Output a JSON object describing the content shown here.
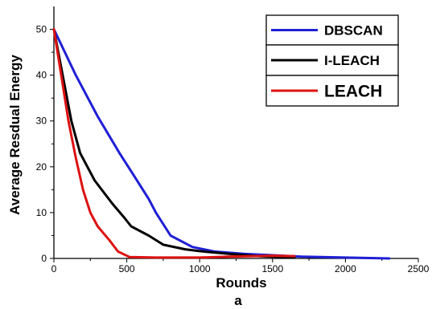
{
  "chart_data": {
    "type": "line",
    "title": "",
    "xlabel": "Rounds",
    "ylabel": "Average Resdual Energy",
    "caption": "a",
    "xlim": [
      0,
      2500
    ],
    "ylim": [
      0,
      55
    ],
    "x_ticks": [
      0,
      500,
      1000,
      1500,
      2000,
      2500
    ],
    "y_ticks": [
      0,
      10,
      20,
      30,
      40,
      50
    ],
    "grid": false,
    "legend_position": "top-right",
    "series": [
      {
        "name": "DBSCAN",
        "color": "#1f1fd6",
        "points": [
          [
            0,
            50
          ],
          [
            150,
            40
          ],
          [
            300,
            31
          ],
          [
            450,
            23
          ],
          [
            550,
            18
          ],
          [
            650,
            13
          ],
          [
            700,
            10
          ],
          [
            800,
            5
          ],
          [
            950,
            2.5
          ],
          [
            1100,
            1.5
          ],
          [
            1300,
            1
          ],
          [
            1500,
            0.7
          ],
          [
            1700,
            0.4
          ],
          [
            2000,
            0.2
          ],
          [
            2300,
            0
          ]
        ]
      },
      {
        "name": "I-LEACH",
        "color": "#000000",
        "points": [
          [
            0,
            50
          ],
          [
            60,
            40
          ],
          [
            120,
            30
          ],
          [
            180,
            23
          ],
          [
            280,
            17
          ],
          [
            400,
            12
          ],
          [
            480,
            9
          ],
          [
            530,
            7
          ],
          [
            650,
            5
          ],
          [
            750,
            3
          ],
          [
            900,
            2
          ],
          [
            1000,
            1.6
          ],
          [
            1200,
            1
          ],
          [
            1400,
            0.5
          ],
          [
            1650,
            0.2
          ]
        ]
      },
      {
        "name": "LEACH",
        "color": "#dd1111",
        "points": [
          [
            0,
            50
          ],
          [
            50,
            40
          ],
          [
            100,
            30
          ],
          [
            150,
            22
          ],
          [
            200,
            15
          ],
          [
            250,
            10
          ],
          [
            300,
            7
          ],
          [
            380,
            4
          ],
          [
            440,
            1.5
          ],
          [
            520,
            0.3
          ],
          [
            700,
            0.2
          ],
          [
            1000,
            0.2
          ],
          [
            1200,
            0.4
          ],
          [
            1500,
            0.6
          ],
          [
            1650,
            0.5
          ]
        ]
      }
    ]
  }
}
